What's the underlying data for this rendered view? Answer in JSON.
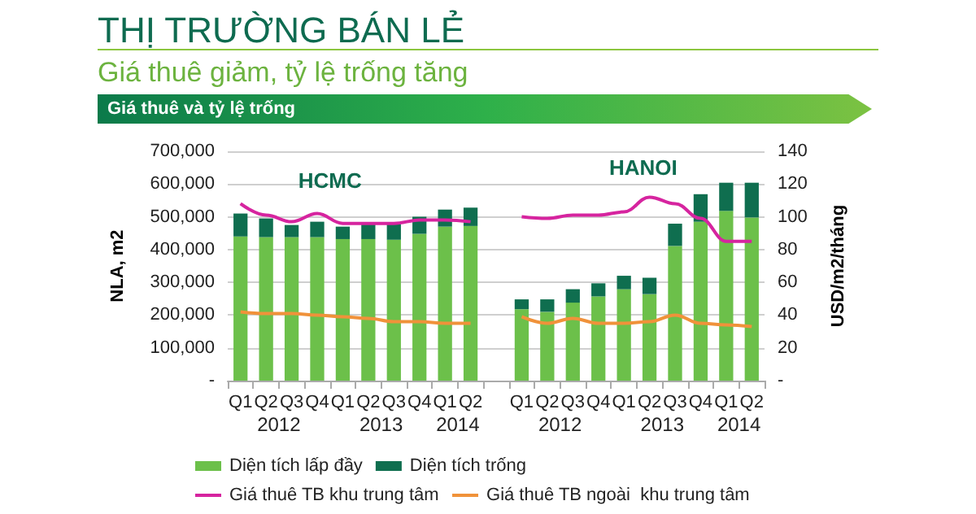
{
  "chart_data": {
    "type": "bar",
    "title": "THỊ TRƯỜNG BÁN LẺ",
    "subtitle": "Giá thuê giảm, tỷ lệ trống tăng",
    "ylabel": "NLA, m2",
    "y2label": "USD/m2/tháng",
    "annotations": [
      "Giá thuê và tỷ lệ trống",
      "HCMC",
      "HANOI",
      "2012",
      "2013",
      "2014",
      "2012",
      "2013",
      "2014"
    ],
    "categories": [
      "Q1",
      "Q2",
      "Q3",
      "Q4",
      "Q1",
      "Q2",
      "Q3",
      "Q4",
      "Q1",
      "Q2",
      null,
      "Q1",
      "Q2",
      "Q3",
      "Q4",
      "Q1",
      "Q2",
      "Q3",
      "Q4",
      "Q1",
      "Q2"
    ],
    "stacked": true,
    "series": [
      {
        "name": "Diện tích lấp đầy",
        "color": "#6cc04a",
        "values": [
          440000,
          438000,
          438000,
          438000,
          432000,
          432000,
          430000,
          448000,
          470000,
          472000,
          null,
          218000,
          210000,
          238000,
          257000,
          279000,
          264000,
          411000,
          485000,
          518000,
          498000
        ]
      },
      {
        "name": "Diện tích trống",
        "color": "#0f6e4f",
        "values": [
          70000,
          57000,
          37000,
          47000,
          38000,
          46000,
          48000,
          52000,
          52000,
          56000,
          null,
          30000,
          38000,
          41000,
          40000,
          41000,
          50000,
          68000,
          84000,
          86000,
          106000
        ]
      },
      {
        "name": "Giá thuê TB khu trung tâm",
        "color": "#d6249f",
        "type": "line",
        "axis": "y2",
        "values": [
          108,
          101,
          97,
          102,
          96,
          96,
          96,
          98,
          98,
          97,
          null,
          100,
          99,
          101,
          101,
          103,
          112,
          108,
          99,
          85,
          85
        ]
      },
      {
        "name": "Giá thuê TB ngoài  khu trung tâm",
        "color": "#f0923a",
        "type": "line",
        "axis": "y2",
        "values": [
          42,
          41,
          41,
          40,
          39,
          38,
          36,
          36,
          35,
          35,
          null,
          39,
          35,
          38,
          35,
          35,
          36,
          40,
          35,
          34,
          33
        ]
      }
    ],
    "ylim": [
      0,
      700000
    ],
    "yticks": [
      {
        "value": 0,
        "label": "-"
      },
      {
        "value": 100000,
        "label": "100,000"
      },
      {
        "value": 200000,
        "label": "200,000"
      },
      {
        "value": 300000,
        "label": "300,000"
      },
      {
        "value": 400000,
        "label": "400,000"
      },
      {
        "value": 500000,
        "label": "500,000"
      },
      {
        "value": 600000,
        "label": "600,000"
      },
      {
        "value": 700000,
        "label": "700,000"
      }
    ],
    "y2lim": [
      0,
      140
    ],
    "y2ticks": [
      {
        "value": 0,
        "label": "-"
      },
      20,
      40,
      60,
      80,
      100,
      120,
      140
    ],
    "grid": "y",
    "legend": "bottom",
    "marker": "none"
  }
}
